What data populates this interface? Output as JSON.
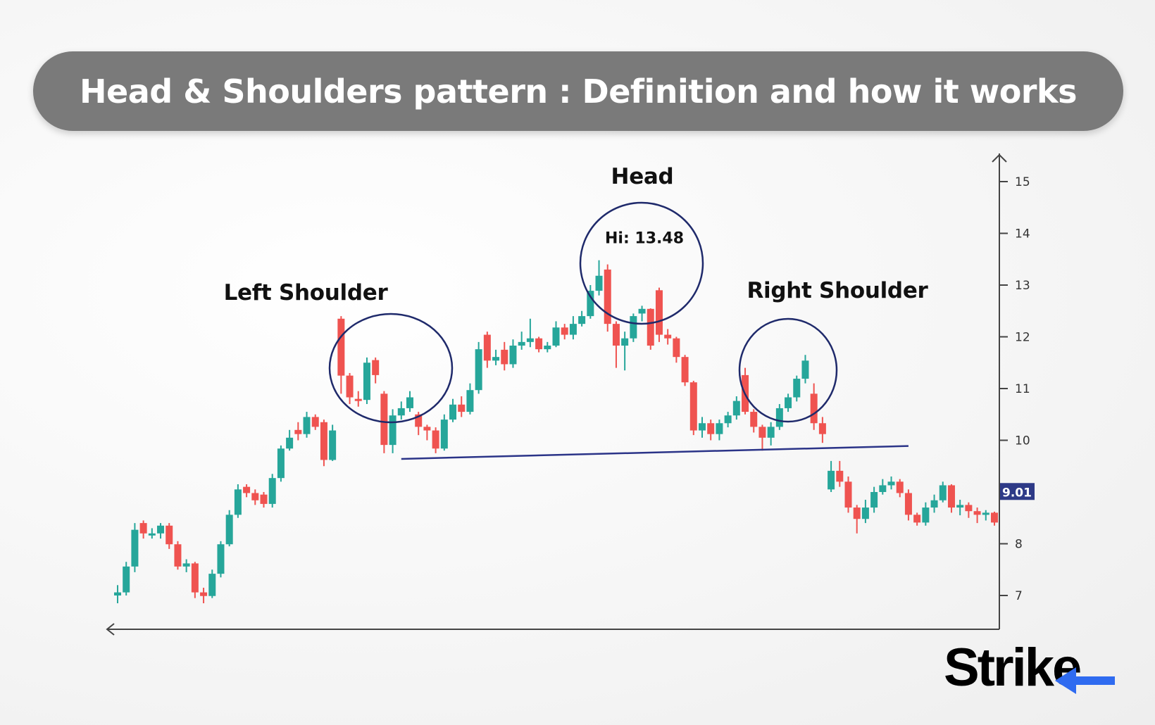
{
  "title": "Head & Shoulders pattern : Definition and how it works",
  "annotations": {
    "left_shoulder": "Left Shoulder",
    "head": "Head",
    "head_high": "Hi: 13.48",
    "right_shoulder": "Right Shoulder"
  },
  "logo": "Strike",
  "colors": {
    "up": "#26a69a",
    "down": "#ef5350",
    "circle": "#1f2a6b",
    "neckline": "#2b3488",
    "price_tag": "#2e3a87",
    "title_bg": "#7a7a7a",
    "logo_accent": "#2f6bf0"
  },
  "chart_data": {
    "type": "candlestick",
    "y_ticks": [
      "15",
      "14",
      "13",
      "12",
      "11",
      "10",
      "8",
      "7"
    ],
    "ylim": [
      6.35,
      15.5
    ],
    "grid": false,
    "current_price_label": "9.01",
    "current_price": 9.01,
    "neckline": {
      "from": {
        "candle": 33,
        "price": 9.64
      },
      "to": {
        "candle": 92,
        "price": 9.89
      }
    },
    "ohlc": [
      [
        7.0,
        7.2,
        6.85,
        7.06
      ],
      [
        7.06,
        7.65,
        7.0,
        7.56
      ],
      [
        7.56,
        8.4,
        7.45,
        8.27
      ],
      [
        8.4,
        8.45,
        8.1,
        8.2
      ],
      [
        8.2,
        8.3,
        8.1,
        8.2
      ],
      [
        8.2,
        8.4,
        8.1,
        8.35
      ],
      [
        8.35,
        8.4,
        7.9,
        7.99
      ],
      [
        7.99,
        8.05,
        7.5,
        7.56
      ],
      [
        7.56,
        7.7,
        7.45,
        7.62
      ],
      [
        7.62,
        7.65,
        6.95,
        7.06
      ],
      [
        7.06,
        7.15,
        6.85,
        6.99
      ],
      [
        6.99,
        7.5,
        6.95,
        7.42
      ],
      [
        7.42,
        8.05,
        7.35,
        7.99
      ],
      [
        7.99,
        8.65,
        7.95,
        8.56
      ],
      [
        8.56,
        9.15,
        8.5,
        9.05
      ],
      [
        9.1,
        9.15,
        8.9,
        8.98
      ],
      [
        8.98,
        9.05,
        8.75,
        8.84
      ],
      [
        8.95,
        9.0,
        8.7,
        8.77
      ],
      [
        8.77,
        9.35,
        8.7,
        9.27
      ],
      [
        9.27,
        9.9,
        9.2,
        9.84
      ],
      [
        9.84,
        10.2,
        9.8,
        10.05
      ],
      [
        10.2,
        10.35,
        10.0,
        10.12
      ],
      [
        10.12,
        10.55,
        10.05,
        10.45
      ],
      [
        10.45,
        10.5,
        10.2,
        10.26
      ],
      [
        10.35,
        10.4,
        9.5,
        9.62
      ],
      [
        9.62,
        10.3,
        9.6,
        10.19
      ],
      [
        12.35,
        12.4,
        10.9,
        11.25
      ],
      [
        11.25,
        11.3,
        10.7,
        10.83
      ],
      [
        10.8,
        10.95,
        10.65,
        10.78
      ],
      [
        10.78,
        11.6,
        10.7,
        11.5
      ],
      [
        11.55,
        11.6,
        11.1,
        11.26
      ],
      [
        10.9,
        10.95,
        9.75,
        9.91
      ],
      [
        9.91,
        10.6,
        9.75,
        10.48
      ],
      [
        10.48,
        10.75,
        10.4,
        10.62
      ],
      [
        10.62,
        10.95,
        10.55,
        10.83
      ],
      [
        10.5,
        10.55,
        10.1,
        10.26
      ],
      [
        10.26,
        10.3,
        10.0,
        10.19
      ],
      [
        10.19,
        10.25,
        9.75,
        9.84
      ],
      [
        9.84,
        10.5,
        9.8,
        10.4
      ],
      [
        10.4,
        10.8,
        10.35,
        10.69
      ],
      [
        10.69,
        10.85,
        10.45,
        10.55
      ],
      [
        10.55,
        11.1,
        10.5,
        10.97
      ],
      [
        10.97,
        11.9,
        10.9,
        11.76
      ],
      [
        12.04,
        12.1,
        11.4,
        11.54
      ],
      [
        11.54,
        11.75,
        11.45,
        11.61
      ],
      [
        11.75,
        11.9,
        11.35,
        11.47
      ],
      [
        11.47,
        11.95,
        11.4,
        11.83
      ],
      [
        11.83,
        12.1,
        11.75,
        11.9
      ],
      [
        11.9,
        12.35,
        11.8,
        11.97
      ],
      [
        11.97,
        12.0,
        11.7,
        11.76
      ],
      [
        11.76,
        11.9,
        11.7,
        11.83
      ],
      [
        11.83,
        12.3,
        11.8,
        12.18
      ],
      [
        12.18,
        12.25,
        11.95,
        12.04
      ],
      [
        12.04,
        12.4,
        11.95,
        12.25
      ],
      [
        12.25,
        12.5,
        12.2,
        12.4
      ],
      [
        12.4,
        13.0,
        12.35,
        12.89
      ],
      [
        12.89,
        13.48,
        12.8,
        13.18
      ],
      [
        13.3,
        13.4,
        12.1,
        12.25
      ],
      [
        12.25,
        12.3,
        11.4,
        11.83
      ],
      [
        11.83,
        12.1,
        11.35,
        11.97
      ],
      [
        11.97,
        12.45,
        11.9,
        12.4
      ],
      [
        12.45,
        12.6,
        12.3,
        12.54
      ],
      [
        12.54,
        12.55,
        11.75,
        11.83
      ],
      [
        12.9,
        12.95,
        11.9,
        12.04
      ],
      [
        12.04,
        12.15,
        11.85,
        11.97
      ],
      [
        11.97,
        12.0,
        11.5,
        11.61
      ],
      [
        11.61,
        11.65,
        11.05,
        11.12
      ],
      [
        11.12,
        11.15,
        10.1,
        10.19
      ],
      [
        10.19,
        10.45,
        10.05,
        10.33
      ],
      [
        10.33,
        10.4,
        10.0,
        10.12
      ],
      [
        10.12,
        10.4,
        10.0,
        10.33
      ],
      [
        10.33,
        10.55,
        10.25,
        10.48
      ],
      [
        10.48,
        10.85,
        10.4,
        10.76
      ],
      [
        11.26,
        11.4,
        10.5,
        10.55
      ],
      [
        10.55,
        10.6,
        10.15,
        10.26
      ],
      [
        10.26,
        10.3,
        9.8,
        10.05
      ],
      [
        10.05,
        10.35,
        9.9,
        10.26
      ],
      [
        10.26,
        10.7,
        10.2,
        10.62
      ],
      [
        10.62,
        10.9,
        10.55,
        10.83
      ],
      [
        10.83,
        11.25,
        10.75,
        11.19
      ],
      [
        11.19,
        11.65,
        11.1,
        11.54
      ],
      [
        10.9,
        11.1,
        10.2,
        10.33
      ],
      [
        10.33,
        10.45,
        9.95,
        10.12
      ],
      [
        9.05,
        9.6,
        9.0,
        9.41
      ],
      [
        9.41,
        9.6,
        9.1,
        9.2
      ],
      [
        9.2,
        9.3,
        8.6,
        8.7
      ],
      [
        8.7,
        8.75,
        8.2,
        8.48
      ],
      [
        8.48,
        8.85,
        8.4,
        8.7
      ],
      [
        8.7,
        9.1,
        8.6,
        9.0
      ],
      [
        9.0,
        9.25,
        8.95,
        9.13
      ],
      [
        9.13,
        9.3,
        9.05,
        9.2
      ],
      [
        9.2,
        9.25,
        8.9,
        8.98
      ],
      [
        8.98,
        9.05,
        8.45,
        8.56
      ],
      [
        8.56,
        8.6,
        8.35,
        8.41
      ],
      [
        8.41,
        8.8,
        8.35,
        8.7
      ],
      [
        8.7,
        8.95,
        8.6,
        8.84
      ],
      [
        8.84,
        9.2,
        8.8,
        9.13
      ],
      [
        9.13,
        9.15,
        8.6,
        8.7
      ],
      [
        8.7,
        8.85,
        8.55,
        8.75
      ],
      [
        8.75,
        8.8,
        8.5,
        8.63
      ],
      [
        8.63,
        8.7,
        8.4,
        8.56
      ],
      [
        8.56,
        8.65,
        8.45,
        8.6
      ],
      [
        8.6,
        8.62,
        8.35,
        8.41
      ]
    ]
  }
}
